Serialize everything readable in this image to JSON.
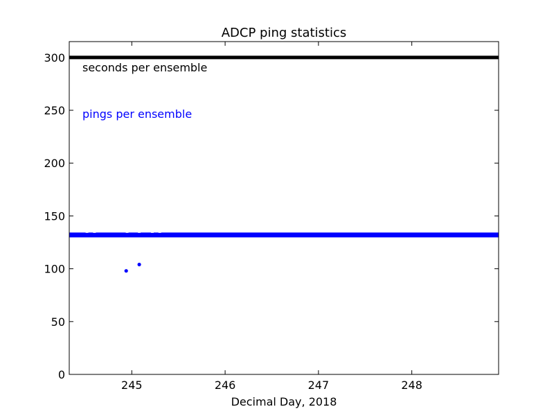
{
  "chart_data": {
    "type": "scatter",
    "title": "ADCP  ping statistics",
    "xlabel": "Decimal Day, 2018",
    "ylabel": "",
    "xlim": [
      244.33,
      248.93
    ],
    "ylim": [
      0,
      315
    ],
    "xticks": [
      245,
      246,
      247,
      248
    ],
    "yticks": [
      0,
      50,
      100,
      150,
      200,
      250,
      300
    ],
    "xtick_labels": [
      "245",
      "246",
      "247",
      "248"
    ],
    "ytick_labels": [
      "0",
      "50",
      "100",
      "150",
      "200",
      "250",
      "300"
    ],
    "grid": false,
    "series": [
      {
        "name": "seconds per ensemble",
        "color": "#000000",
        "style": "solid-dense-points",
        "x_range": [
          244.33,
          248.93
        ],
        "value": 300
      },
      {
        "name": "pings per ensemble",
        "color": "#0000ff",
        "style": "dense-points",
        "x_range": [
          244.33,
          248.93
        ],
        "value": 132,
        "outliers": [
          {
            "x": 244.94,
            "y": 98
          },
          {
            "x": 245.08,
            "y": 104
          }
        ]
      }
    ],
    "annotations": [
      {
        "text": "seconds per ensemble",
        "color": "#000000"
      },
      {
        "text": "pings per ensemble",
        "color": "#0000ff"
      }
    ]
  }
}
